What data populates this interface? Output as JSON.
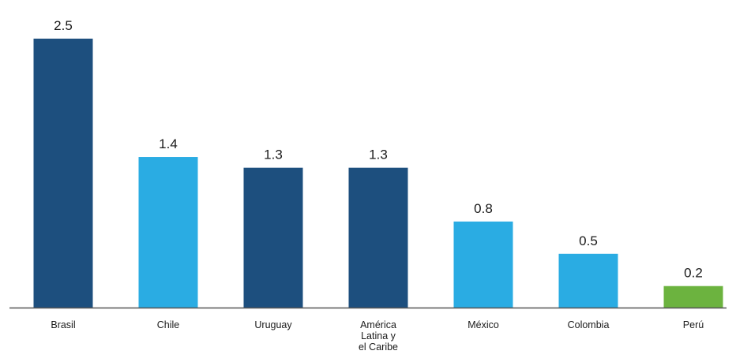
{
  "chart_data": {
    "type": "bar",
    "title": "",
    "xlabel": "",
    "ylabel": "",
    "ylim": [
      0,
      2.5
    ],
    "grid": false,
    "categories": [
      [
        "Brasil"
      ],
      [
        "Chile"
      ],
      [
        "Uruguay"
      ],
      [
        "América",
        "Latina y",
        "el Caribe"
      ],
      [
        "México"
      ],
      [
        "Colombia"
      ],
      [
        "Perú"
      ]
    ],
    "values": [
      2.5,
      1.4,
      1.3,
      1.3,
      0.8,
      0.5,
      0.2
    ],
    "value_labels": [
      "2.5",
      "1.4",
      "1.3",
      "1.3",
      "0.8",
      "0.5",
      "0.2"
    ],
    "bar_colors": [
      "#1d4f7e",
      "#2aace3",
      "#1d4f7e",
      "#1d4f7e",
      "#2aace3",
      "#2aace3",
      "#6cb33f"
    ],
    "axis_color": "#555555"
  }
}
